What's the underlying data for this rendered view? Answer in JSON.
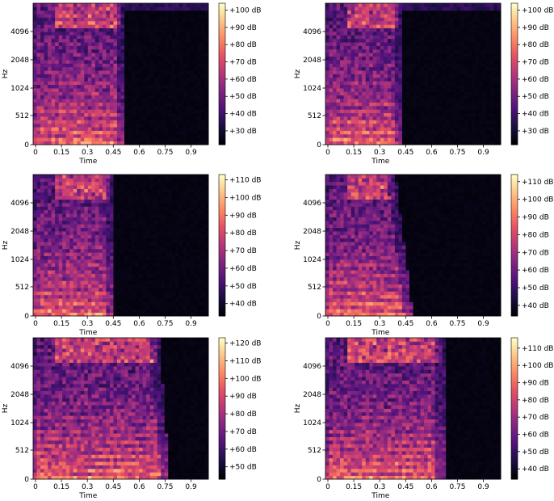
{
  "chart_data": [
    {
      "type": "heatmap",
      "title": "",
      "xlabel": "Time",
      "ylabel": "Hz",
      "x_ticks": [
        "0",
        "0.15",
        "0.3",
        "0.45",
        "0.6",
        "0.75",
        "0.9"
      ],
      "y_ticks": [
        "0",
        "512",
        "1024",
        "2048",
        "4096"
      ],
      "colorbar_ticks": [
        "+30 dB",
        "+40 dB",
        "+50 dB",
        "+60 dB",
        "+70 dB",
        "+80 dB",
        "+90 dB",
        "+100 dB"
      ],
      "colorbar_range_db": [
        22,
        104
      ],
      "sound_end_time": 0.52,
      "sound_end_at_top": 0.52,
      "xlim": [
        0,
        1.0
      ],
      "colormap": "magma"
    },
    {
      "type": "heatmap",
      "title": "",
      "xlabel": "Time",
      "ylabel": "Hz",
      "x_ticks": [
        "0",
        "0.15",
        "0.3",
        "0.45",
        "0.6",
        "0.75",
        "0.9"
      ],
      "y_ticks": [
        "0",
        "512",
        "1024",
        "2048",
        "4096"
      ],
      "colorbar_ticks": [
        "+30 dB",
        "+40 dB",
        "+50 dB",
        "+60 dB",
        "+70 dB",
        "+80 dB",
        "+90 dB",
        "+100 dB"
      ],
      "colorbar_range_db": [
        22,
        104
      ],
      "sound_end_time": 0.44,
      "sound_end_at_top": 0.44,
      "xlim": [
        0,
        1.0
      ],
      "colormap": "magma"
    },
    {
      "type": "heatmap",
      "title": "",
      "xlabel": "Time",
      "ylabel": "Hz",
      "x_ticks": [
        "0",
        "0.15",
        "0.3",
        "0.45",
        "0.6",
        "0.75",
        "0.9"
      ],
      "y_ticks": [
        "0",
        "512",
        "1024",
        "2048",
        "4096"
      ],
      "colorbar_ticks": [
        "+40 dB",
        "+50 dB",
        "+60 dB",
        "+70 dB",
        "+80 dB",
        "+90 dB",
        "+100 dB",
        "+110 dB"
      ],
      "colorbar_range_db": [
        33,
        113
      ],
      "sound_end_time": 0.46,
      "sound_end_at_top": 0.46,
      "xlim": [
        0,
        1.0
      ],
      "colormap": "magma"
    },
    {
      "type": "heatmap",
      "title": "",
      "xlabel": "Time",
      "ylabel": "Hz",
      "x_ticks": [
        "0",
        "0.15",
        "0.3",
        "0.45",
        "0.6",
        "0.75",
        "0.9"
      ],
      "y_ticks": [
        "0",
        "512",
        "1024",
        "2048",
        "4096"
      ],
      "colorbar_ticks": [
        "+40 dB",
        "+50 dB",
        "+60 dB",
        "+70 dB",
        "+80 dB",
        "+90 dB",
        "+100 dB",
        "+110 dB"
      ],
      "colorbar_range_db": [
        34,
        114
      ],
      "sound_end_time": 0.5,
      "sound_end_at_top": 0.4,
      "xlim": [
        0,
        1.0
      ],
      "colormap": "magma"
    },
    {
      "type": "heatmap",
      "title": "",
      "xlabel": "Time",
      "ylabel": "Hz",
      "x_ticks": [
        "0",
        "0.15",
        "0.3",
        "0.45",
        "0.6",
        "0.75",
        "0.9"
      ],
      "y_ticks": [
        "0",
        "512",
        "1024",
        "2048",
        "4096"
      ],
      "colorbar_ticks": [
        "+50 dB",
        "+60 dB",
        "+70 dB",
        "+80 dB",
        "+90 dB",
        "+100 dB",
        "+110 dB",
        "+120 dB"
      ],
      "colorbar_range_db": [
        43,
        123
      ],
      "sound_end_time": 0.78,
      "sound_end_at_top": 0.72,
      "xlim": [
        0,
        1.0
      ],
      "colormap": "magma"
    },
    {
      "type": "heatmap",
      "title": "",
      "xlabel": "Time",
      "ylabel": "Hz",
      "x_ticks": [
        "0",
        "0.15",
        "0.3",
        "0.45",
        "0.6",
        "0.75",
        "0.9"
      ],
      "y_ticks": [
        "0",
        "512",
        "1024",
        "2048",
        "4096"
      ],
      "colorbar_ticks": [
        "+40 dB",
        "+50 dB",
        "+60 dB",
        "+70 dB",
        "+80 dB",
        "+90 dB",
        "+100 dB",
        "+110 dB"
      ],
      "colorbar_range_db": [
        34,
        116
      ],
      "sound_end_time": 0.68,
      "sound_end_at_top": 0.68,
      "xlim": [
        0,
        1.0
      ],
      "colormap": "magma"
    }
  ]
}
